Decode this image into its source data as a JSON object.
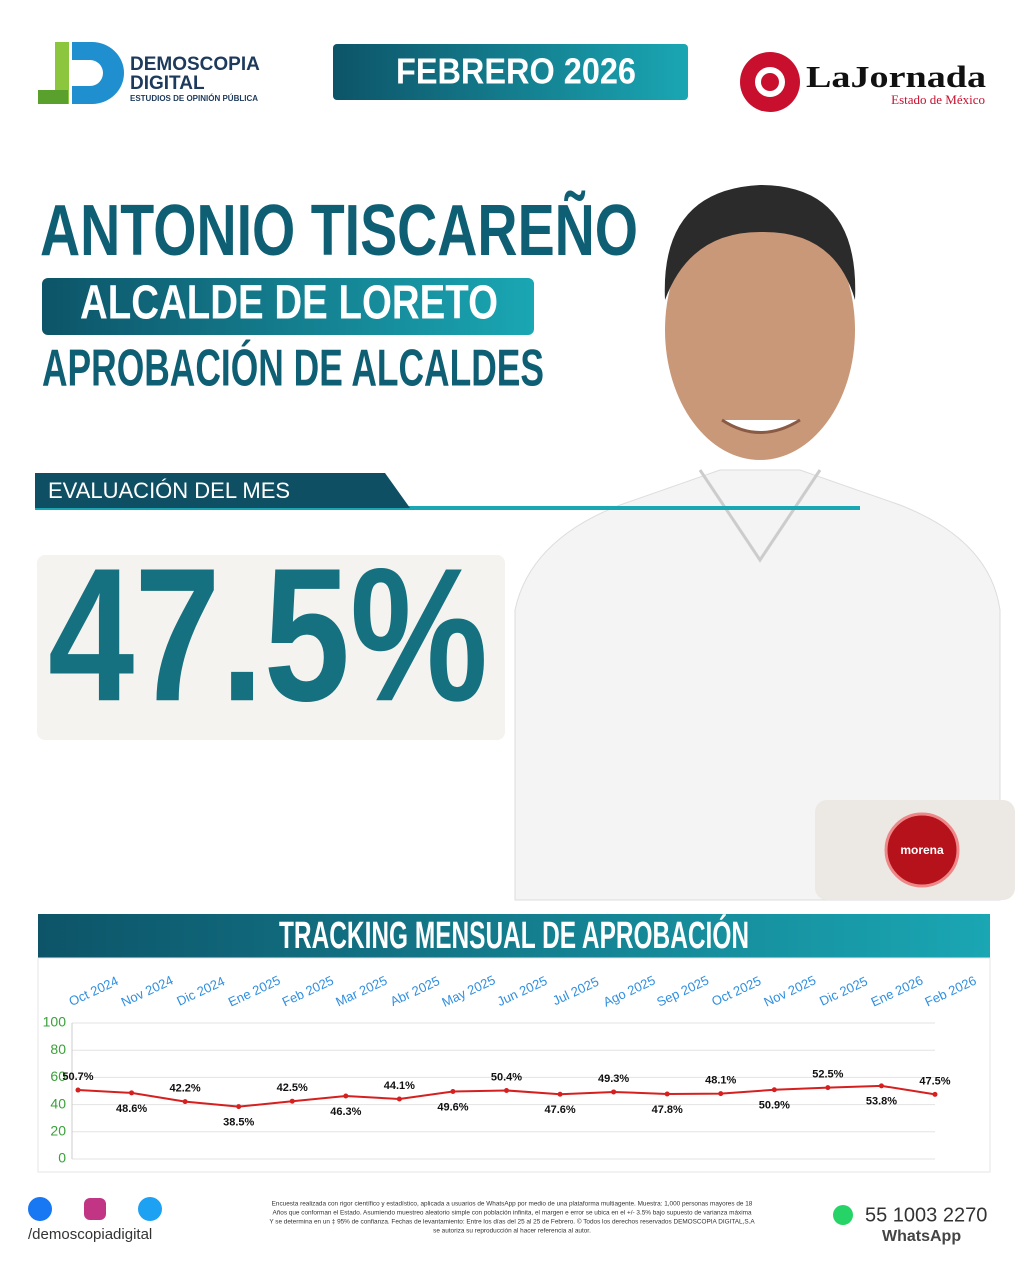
{
  "header": {
    "brand": "DEMOSCOPIA",
    "brand_sub": "DIGITAL",
    "brand_tag": "ESTUDIOS DE OPINIÓN PÚBLICA",
    "date": "FEBRERO 2026",
    "partner": "LaJornada",
    "partner_sub": "Estado de México"
  },
  "profile": {
    "name": "ANTONIO TISCAREÑO",
    "role": "ALCALDE DE LORETO",
    "subject": "APROBACIÓN DE ALCALDES",
    "section": "EVALUACIÓN DEL MES",
    "score": "47.5%",
    "party": "morena"
  },
  "chart_data": {
    "type": "line",
    "title": "TRACKING MENSUAL DE APROBACIÓN",
    "categories": [
      "Oct 2024",
      "Nov 2024",
      "Dic 2024",
      "Ene 2025",
      "Feb 2025",
      "Mar 2025",
      "Abr 2025",
      "May 2025",
      "Jun 2025",
      "Jul 2025",
      "Ago 2025",
      "Sep 2025",
      "Oct 2025",
      "Nov 2025",
      "Dic 2025",
      "Ene 2026",
      "Feb 2026"
    ],
    "values": [
      50.7,
      48.6,
      42.2,
      38.5,
      42.5,
      46.3,
      44.1,
      49.6,
      50.4,
      47.6,
      49.3,
      47.8,
      48.1,
      50.9,
      52.5,
      53.8,
      47.5
    ],
    "value_labels": [
      "50.7%",
      "48.6%",
      "42.2%",
      "38.5%",
      "42.5%",
      "46.3%",
      "44.1%",
      "49.6%",
      "50.4%",
      "47.6%",
      "49.3%",
      "47.8%",
      "48.1%",
      "50.9%",
      "52.5%",
      "53.8%",
      "47.5%"
    ],
    "color": "#d62020",
    "ylim": [
      0,
      100
    ],
    "yticks": [
      0,
      20,
      40,
      60,
      80,
      100
    ],
    "grid": true
  },
  "footer": {
    "social": "/demoscopiadigital",
    "disclaimer": [
      "Encuesta realizada con rigor científico y estadístico, aplicada a usuarios de WhatsApp por medio de una plataforma multiagente. Muestra: 1,000 personas mayores de 18",
      "Años que conforman el Estado. Asumiendo muestreo aleatorio simple con población infinita, el margen e error se ubica en el +/- 3.5% bajo supuesto de varianza máxima",
      "Y se determina en un ‡ 95% de confianza. Fechas de levantamiento: Entre los días del 25 al 25 de Febrero. © Todos los derechos reservados DEMOSCOPIA DIGITAL,S.A",
      "se autoriza su reproducción al hacer referencia al autor."
    ],
    "phone": "55 1003 2270",
    "phone_sub": "WhatsApp"
  }
}
